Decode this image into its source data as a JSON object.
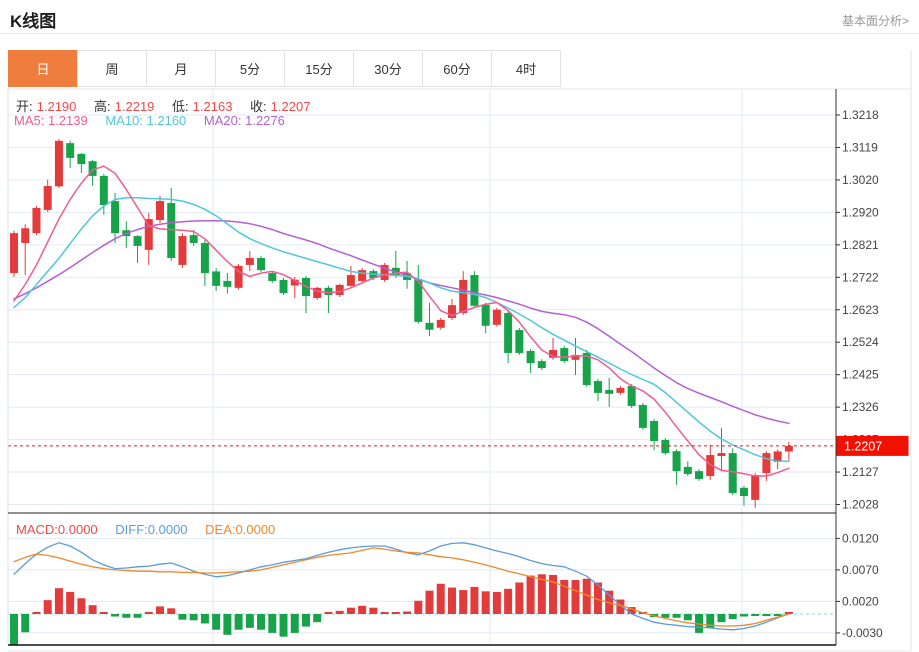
{
  "header": {
    "title": "K线图",
    "analysis_link": "基本面分析>"
  },
  "tabs": {
    "items": [
      "日",
      "周",
      "月",
      "5分",
      "15分",
      "30分",
      "60分",
      "4时"
    ],
    "selected_index": 0
  },
  "ohlc_legend": {
    "open_label": "开:",
    "open": "1.2190",
    "high_label": "高:",
    "high": "1.2219",
    "low_label": "低:",
    "low": "1.2163",
    "close_label": "收:",
    "close": "1.2207"
  },
  "ma_legend": {
    "ma5": "MA5: 1.2139",
    "ma10": "MA10: 1.2160",
    "ma20": "MA20: 1.2276"
  },
  "macd_legend": {
    "macd": "MACD:0.0000",
    "diff": "DIFF:0.0000",
    "dea": "DEA:0.0000"
  },
  "price_badge": "1.2207",
  "colors": {
    "up": "#e23b3b",
    "down": "#17a34a",
    "ma5": "#ef5d92",
    "ma10": "#4fc7dc",
    "ma20": "#b55fd3",
    "diff": "#5a9be0",
    "dea": "#f0882a",
    "value_red": "#f24848",
    "badge_bg": "#f21000",
    "badge_text": "#ffffff",
    "tab_selected": "#ef7e3e",
    "grid": "#e2eaf4",
    "axis": "#333333",
    "price_line": "#e61414",
    "zero_line": "#86d7e8"
  },
  "chart_data": {
    "type": "candlestick+macd",
    "main": {
      "title": "K线图 daily candles",
      "y_tick_labels": [
        "1.3218",
        "1.3119",
        "1.3020",
        "1.2920",
        "1.2821",
        "1.2722",
        "1.2623",
        "1.2524",
        "1.2425",
        "1.2326",
        "1.2227",
        "1.2127",
        "1.2028"
      ],
      "ylim": [
        1.199,
        1.3295
      ],
      "last_price_line": 1.2207,
      "candles_ohlc": [
        [
          1.2735,
          1.2864,
          1.2723,
          1.2857
        ],
        [
          1.2827,
          1.2884,
          1.2729,
          1.2872
        ],
        [
          1.2857,
          1.294,
          1.2851,
          1.2934
        ],
        [
          1.2928,
          1.302,
          1.2922,
          1.3001
        ],
        [
          1.3,
          1.3145,
          1.2995,
          1.3139
        ],
        [
          1.3132,
          1.3139,
          1.3056,
          1.3087
        ],
        [
          1.3099,
          1.3102,
          1.3041,
          1.3068
        ],
        [
          1.3077,
          1.3081,
          1.3001,
          1.3032
        ],
        [
          1.3032,
          1.3038,
          1.2913,
          1.2943
        ],
        [
          1.2955,
          1.298,
          1.2827,
          1.2857
        ],
        [
          1.2866,
          1.2894,
          1.2812,
          1.2848
        ],
        [
          1.2848,
          1.2851,
          1.2766,
          1.2818
        ],
        [
          1.2806,
          1.2919,
          1.276,
          1.29
        ],
        [
          1.2897,
          1.2971,
          1.2888,
          1.2955
        ],
        [
          1.2949,
          1.2995,
          1.2772,
          1.2781
        ],
        [
          1.276,
          1.2857,
          1.2751,
          1.2848
        ],
        [
          1.2851,
          1.2867,
          1.2818,
          1.2827
        ],
        [
          1.2827,
          1.2836,
          1.2696,
          1.2735
        ],
        [
          1.274,
          1.275,
          1.268,
          1.2696
        ],
        [
          1.2711,
          1.2735,
          1.2672,
          1.2693
        ],
        [
          1.269,
          1.2763,
          1.2684,
          1.2757
        ],
        [
          1.276,
          1.2802,
          1.2741,
          1.2781
        ],
        [
          1.2781,
          1.2787,
          1.2738,
          1.2744
        ],
        [
          1.2735,
          1.2741,
          1.2705,
          1.2711
        ],
        [
          1.2714,
          1.272,
          1.2668,
          1.2674
        ],
        [
          1.2697,
          1.2723,
          1.2658,
          1.2715
        ],
        [
          1.272,
          1.2726,
          1.2613,
          1.2665
        ],
        [
          1.2659,
          1.2693,
          1.2653,
          1.269
        ],
        [
          1.269,
          1.2696,
          1.2613,
          1.2668
        ],
        [
          1.2668,
          1.2702,
          1.2662,
          1.2699
        ],
        [
          1.2696,
          1.2757,
          1.2693,
          1.2729
        ],
        [
          1.2711,
          1.2751,
          1.2705,
          1.2744
        ],
        [
          1.2741,
          1.2747,
          1.2714,
          1.272
        ],
        [
          1.2714,
          1.2766,
          1.2708,
          1.276
        ],
        [
          1.2751,
          1.2803,
          1.272,
          1.2726
        ],
        [
          1.2735,
          1.2772,
          1.2687,
          1.2714
        ],
        [
          1.2717,
          1.276,
          1.258,
          1.2586
        ],
        [
          1.2583,
          1.2644,
          1.2543,
          1.2562
        ],
        [
          1.2568,
          1.2598,
          1.2562,
          1.2592
        ],
        [
          1.2598,
          1.2656,
          1.2592,
          1.2637
        ],
        [
          1.2613,
          1.2741,
          1.2607,
          1.2714
        ],
        [
          1.2729,
          1.2741,
          1.2629,
          1.2635
        ],
        [
          1.2638,
          1.2644,
          1.2552,
          1.2574
        ],
        [
          1.2577,
          1.2629,
          1.2571,
          1.2623
        ],
        [
          1.2613,
          1.2619,
          1.246,
          1.2491
        ],
        [
          1.2561,
          1.2567,
          1.2485,
          1.2491
        ],
        [
          1.2497,
          1.2503,
          1.243,
          1.246
        ],
        [
          1.2466,
          1.2472,
          1.2439,
          1.2445
        ],
        [
          1.2476,
          1.2537,
          1.247,
          1.25
        ],
        [
          1.2506,
          1.2512,
          1.246,
          1.2466
        ],
        [
          1.247,
          1.2537,
          1.2424,
          1.2485
        ],
        [
          1.2491,
          1.25,
          1.2387,
          1.2393
        ],
        [
          1.2405,
          1.2411,
          1.2344,
          1.2369
        ],
        [
          1.2378,
          1.2415,
          1.2326,
          1.2366
        ],
        [
          1.2369,
          1.239,
          1.2363,
          1.2384
        ],
        [
          1.239,
          1.2396,
          1.2323,
          1.2329
        ],
        [
          1.2332,
          1.2338,
          1.2256,
          1.2262
        ],
        [
          1.2283,
          1.229,
          1.2194,
          1.2222
        ],
        [
          1.2225,
          1.2231,
          1.2179,
          1.2185
        ],
        [
          1.2191,
          1.2197,
          1.2088,
          1.213
        ],
        [
          1.2143,
          1.216,
          1.2115,
          1.2121
        ],
        [
          1.213,
          1.2136,
          1.21,
          1.2106
        ],
        [
          1.2115,
          1.221,
          1.2103,
          1.2179
        ],
        [
          1.2176,
          1.2262,
          1.2133,
          1.2185
        ],
        [
          1.2185,
          1.22,
          1.2057,
          1.2063
        ],
        [
          1.2079,
          1.2085,
          1.2024,
          1.2054
        ],
        [
          1.2042,
          1.2124,
          1.2018,
          1.2118
        ],
        [
          1.2124,
          1.2191,
          1.21,
          1.2185
        ],
        [
          1.2158,
          1.2196,
          1.2136,
          1.219
        ],
        [
          1.219,
          1.2219,
          1.2163,
          1.2207
        ]
      ],
      "ma5": [
        1.265,
        1.27,
        1.276,
        1.283,
        1.29,
        1.296,
        1.301,
        1.305,
        1.3062,
        1.304,
        1.299,
        1.2935,
        1.288,
        1.287,
        1.2868,
        1.2866,
        1.2862,
        1.284,
        1.2805,
        1.277,
        1.274,
        1.2725,
        1.2735,
        1.274,
        1.273,
        1.2712,
        1.2694,
        1.268,
        1.2675,
        1.2678,
        1.269,
        1.2705,
        1.272,
        1.273,
        1.2735,
        1.2738,
        1.271,
        1.2664,
        1.262,
        1.2605,
        1.2618,
        1.263,
        1.264,
        1.2645,
        1.262,
        1.2585,
        1.254,
        1.25,
        1.248,
        1.2478,
        1.2482,
        1.2482,
        1.247,
        1.2445,
        1.2412,
        1.239,
        1.2375,
        1.235,
        1.231,
        1.2265,
        1.2222,
        1.218,
        1.215,
        1.2132,
        1.2128,
        1.2122,
        1.2115,
        1.2115,
        1.2125,
        1.2139
      ],
      "ma10": [
        1.263,
        1.266,
        1.27,
        1.274,
        1.278,
        1.2825,
        1.287,
        1.291,
        1.294,
        1.296,
        1.2965,
        1.2965,
        1.2963,
        1.2962,
        1.296,
        1.2955,
        1.2945,
        1.293,
        1.291,
        1.2885,
        1.286,
        1.284,
        1.2825,
        1.2812,
        1.28,
        1.279,
        1.278,
        1.277,
        1.276,
        1.275,
        1.274,
        1.2735,
        1.2732,
        1.273,
        1.2728,
        1.2725,
        1.2718,
        1.2705,
        1.269,
        1.268,
        1.2675,
        1.267,
        1.266,
        1.2645,
        1.2628,
        1.261,
        1.259,
        1.2568,
        1.2548,
        1.253,
        1.2512,
        1.2495,
        1.2478,
        1.246,
        1.2442,
        1.2425,
        1.241,
        1.2395,
        1.237,
        1.234,
        1.231,
        1.228,
        1.2252,
        1.2228,
        1.221,
        1.2195,
        1.218,
        1.2168,
        1.216,
        1.216
      ],
      "ma20": [
        1.2656,
        1.2672,
        1.269,
        1.271,
        1.273,
        1.2752,
        1.2775,
        1.2798,
        1.282,
        1.284,
        1.2856,
        1.2868,
        1.2878,
        1.2884,
        1.2889,
        1.2892,
        1.2894,
        1.2895,
        1.2895,
        1.2894,
        1.2891,
        1.2886,
        1.2878,
        1.2868,
        1.2856,
        1.2846,
        1.2836,
        1.2825,
        1.2812,
        1.28,
        1.2788,
        1.2775,
        1.2762,
        1.275,
        1.2738,
        1.2727,
        1.2716,
        1.2705,
        1.2697,
        1.269,
        1.2683,
        1.2675,
        1.2668,
        1.266,
        1.265,
        1.264,
        1.2628,
        1.2618,
        1.2612,
        1.2608,
        1.26,
        1.2585,
        1.2565,
        1.2542,
        1.2518,
        1.2495,
        1.247,
        1.2445,
        1.2422,
        1.24,
        1.2382,
        1.2368,
        1.2355,
        1.2342,
        1.2328,
        1.2315,
        1.2302,
        1.2292,
        1.2283,
        1.2276
      ],
      "grid_vertical_x": [
        213,
        490,
        742
      ]
    },
    "macd": {
      "y_tick_labels": [
        "0.0120",
        "0.0070",
        "0.0020",
        "-0.0030"
      ],
      "y_tick_values": [
        0.012,
        0.007,
        0.002,
        -0.003
      ],
      "histogram": [
        -0.0049,
        -0.0029,
        0.0002,
        0.0022,
        0.0041,
        0.0035,
        0.0025,
        0.0014,
        0.0002,
        -0.0004,
        -0.0006,
        -0.0006,
        0.0002,
        0.0012,
        0.0009,
        -0.0009,
        -0.001,
        -0.0015,
        -0.0025,
        -0.0033,
        -0.0025,
        -0.0022,
        -0.0025,
        -0.003,
        -0.0036,
        -0.003,
        -0.002,
        -0.0013,
        0.0002,
        0.0005,
        0.001,
        0.0013,
        0.001,
        0.0003,
        0.0001,
        0.0004,
        0.0021,
        0.0037,
        0.0048,
        0.0042,
        0.0038,
        0.0043,
        0.0036,
        0.0035,
        0.004,
        0.005,
        0.0061,
        0.0063,
        0.0062,
        0.0054,
        0.0054,
        0.0056,
        0.005,
        0.0037,
        0.0023,
        0.0011,
        0.0003,
        -0.0005,
        -0.0006,
        -0.0006,
        -0.001,
        -0.003,
        -0.0022,
        -0.0013,
        -0.0008,
        -0.0004,
        -0.0003,
        -0.0002,
        -0.0001,
        0.0
      ],
      "diff": [
        0.0063,
        0.008,
        0.0095,
        0.0106,
        0.0113,
        0.0108,
        0.0098,
        0.0086,
        0.0078,
        0.0072,
        0.0073,
        0.0075,
        0.0076,
        0.0079,
        0.0081,
        0.0075,
        0.0068,
        0.0063,
        0.0059,
        0.0061,
        0.0065,
        0.007,
        0.0075,
        0.0078,
        0.0082,
        0.0085,
        0.0088,
        0.0093,
        0.0098,
        0.0102,
        0.0105,
        0.0107,
        0.0108,
        0.0108,
        0.0103,
        0.0097,
        0.0094,
        0.01,
        0.0108,
        0.0112,
        0.0113,
        0.011,
        0.0105,
        0.01,
        0.0096,
        0.0091,
        0.0085,
        0.008,
        0.0077,
        0.0075,
        0.0068,
        0.006,
        0.0046,
        0.003,
        0.0014,
        0.0,
        -0.0007,
        -0.0013,
        -0.0016,
        -0.0018,
        -0.002,
        -0.0021,
        -0.0022,
        -0.0024,
        -0.0025,
        -0.0023,
        -0.0019,
        -0.0013,
        -0.0006,
        0.0
      ],
      "dea": [
        0.0083,
        0.009,
        0.0095,
        0.0093,
        0.0089,
        0.0084,
        0.0079,
        0.0075,
        0.0072,
        0.007,
        0.0069,
        0.0068,
        0.0068,
        0.0067,
        0.0067,
        0.0066,
        0.0066,
        0.0065,
        0.0065,
        0.0066,
        0.0067,
        0.0068,
        0.007,
        0.0074,
        0.0078,
        0.0082,
        0.0086,
        0.009,
        0.0093,
        0.0095,
        0.0097,
        0.0101,
        0.0105,
        0.0103,
        0.01,
        0.0098,
        0.0097,
        0.0094,
        0.0091,
        0.0089,
        0.0086,
        0.0082,
        0.0078,
        0.0073,
        0.0068,
        0.0064,
        0.0059,
        0.0055,
        0.0051,
        0.0044,
        0.0037,
        0.003,
        0.0023,
        0.0018,
        0.0014,
        0.0008,
        0.0002,
        -0.0003,
        -0.0007,
        -0.0011,
        -0.0014,
        -0.0016,
        -0.0018,
        -0.0019,
        -0.0019,
        -0.0018,
        -0.0015,
        -0.001,
        -0.0005,
        0.0
      ]
    }
  }
}
